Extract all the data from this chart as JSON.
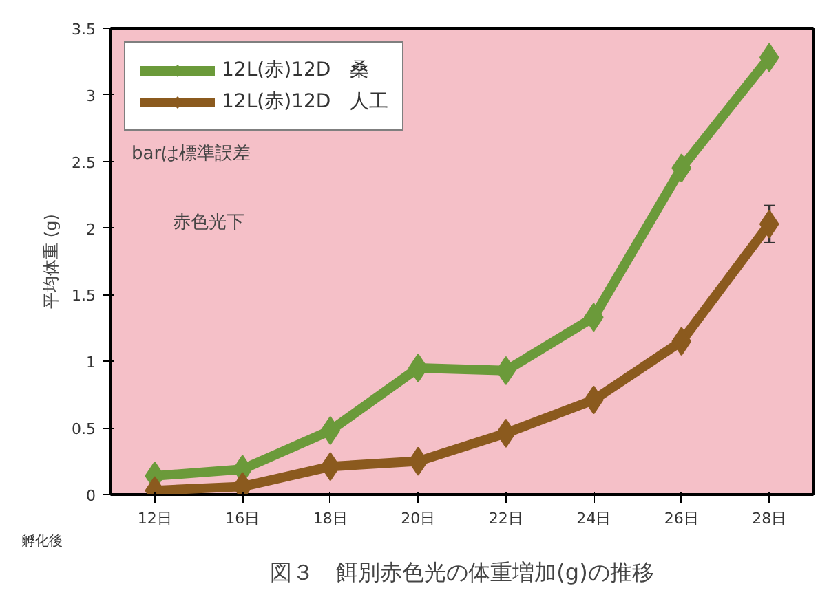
{
  "chart_data": {
    "type": "line",
    "title": "図３　餌別赤色光の体重増加(g)の推移",
    "xlabel": "孵化後",
    "ylabel": "平均体重 (g)",
    "categories": [
      "12日",
      "16日",
      "18日",
      "20日",
      "22日",
      "24日",
      "26日",
      "28日"
    ],
    "series": [
      {
        "name": "12L(赤)12D　桑",
        "color": "#6b9a3a",
        "values": [
          0.14,
          0.19,
          0.48,
          0.95,
          0.93,
          1.33,
          2.45,
          3.28
        ]
      },
      {
        "name": "12L(赤)12D　人工",
        "color": "#8b5a1e",
        "values": [
          0.03,
          0.06,
          0.21,
          0.25,
          0.46,
          0.71,
          1.15,
          2.03
        ],
        "errors": [
          null,
          null,
          null,
          null,
          null,
          null,
          null,
          0.14
        ]
      }
    ],
    "annotations": [
      "barは標準誤差",
      "赤色光下"
    ],
    "ylim": [
      0,
      3.5
    ],
    "yticks": [
      0,
      0.5,
      1,
      1.5,
      2,
      2.5,
      3,
      3.5
    ],
    "grid": false,
    "legend": "top left",
    "marker": "diamond",
    "line_style": "solid"
  }
}
